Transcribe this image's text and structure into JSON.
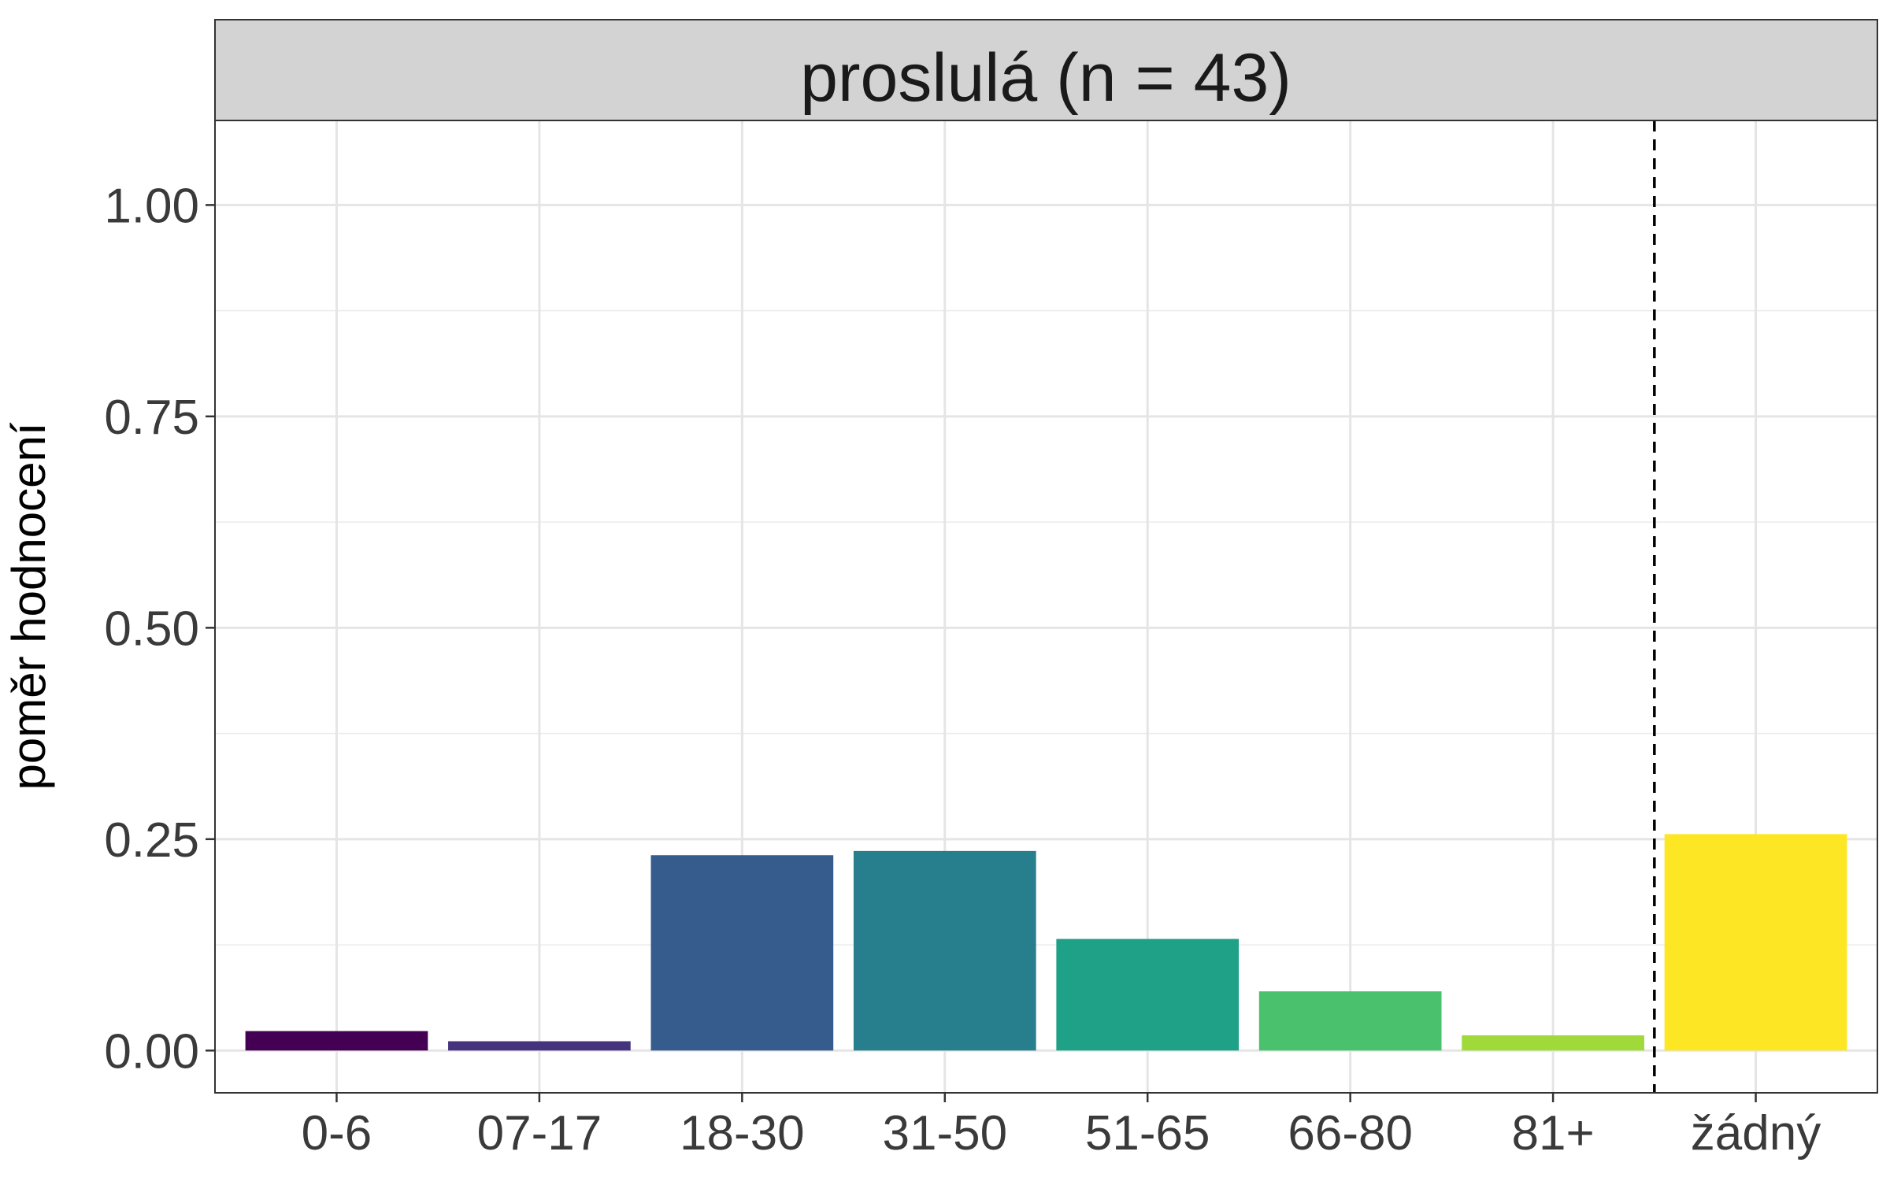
{
  "chart_data": {
    "type": "bar",
    "facet_title": "proslulá (n = 43)",
    "ylabel": "poměr hodnocení",
    "xlabel": "",
    "categories": [
      "0-6",
      "07-17",
      "18-30",
      "31-50",
      "51-65",
      "66-80",
      "81+",
      "žádný"
    ],
    "values": [
      0.023,
      0.011,
      0.231,
      0.236,
      0.132,
      0.07,
      0.018,
      0.256
    ],
    "colors": [
      "#440154",
      "#46337E",
      "#365C8D",
      "#277F8E",
      "#1FA187",
      "#4AC16D",
      "#9FDA3A",
      "#FDE725"
    ],
    "ylim": [
      -0.05,
      1.1
    ],
    "yticks": [
      "0.00",
      "0.25",
      "0.50",
      "0.75",
      "1.00"
    ],
    "separator": {
      "type": "dashed-vertical-line",
      "between_categories": [
        "81+",
        "žádný"
      ]
    },
    "grid": true,
    "legend": "none"
  }
}
